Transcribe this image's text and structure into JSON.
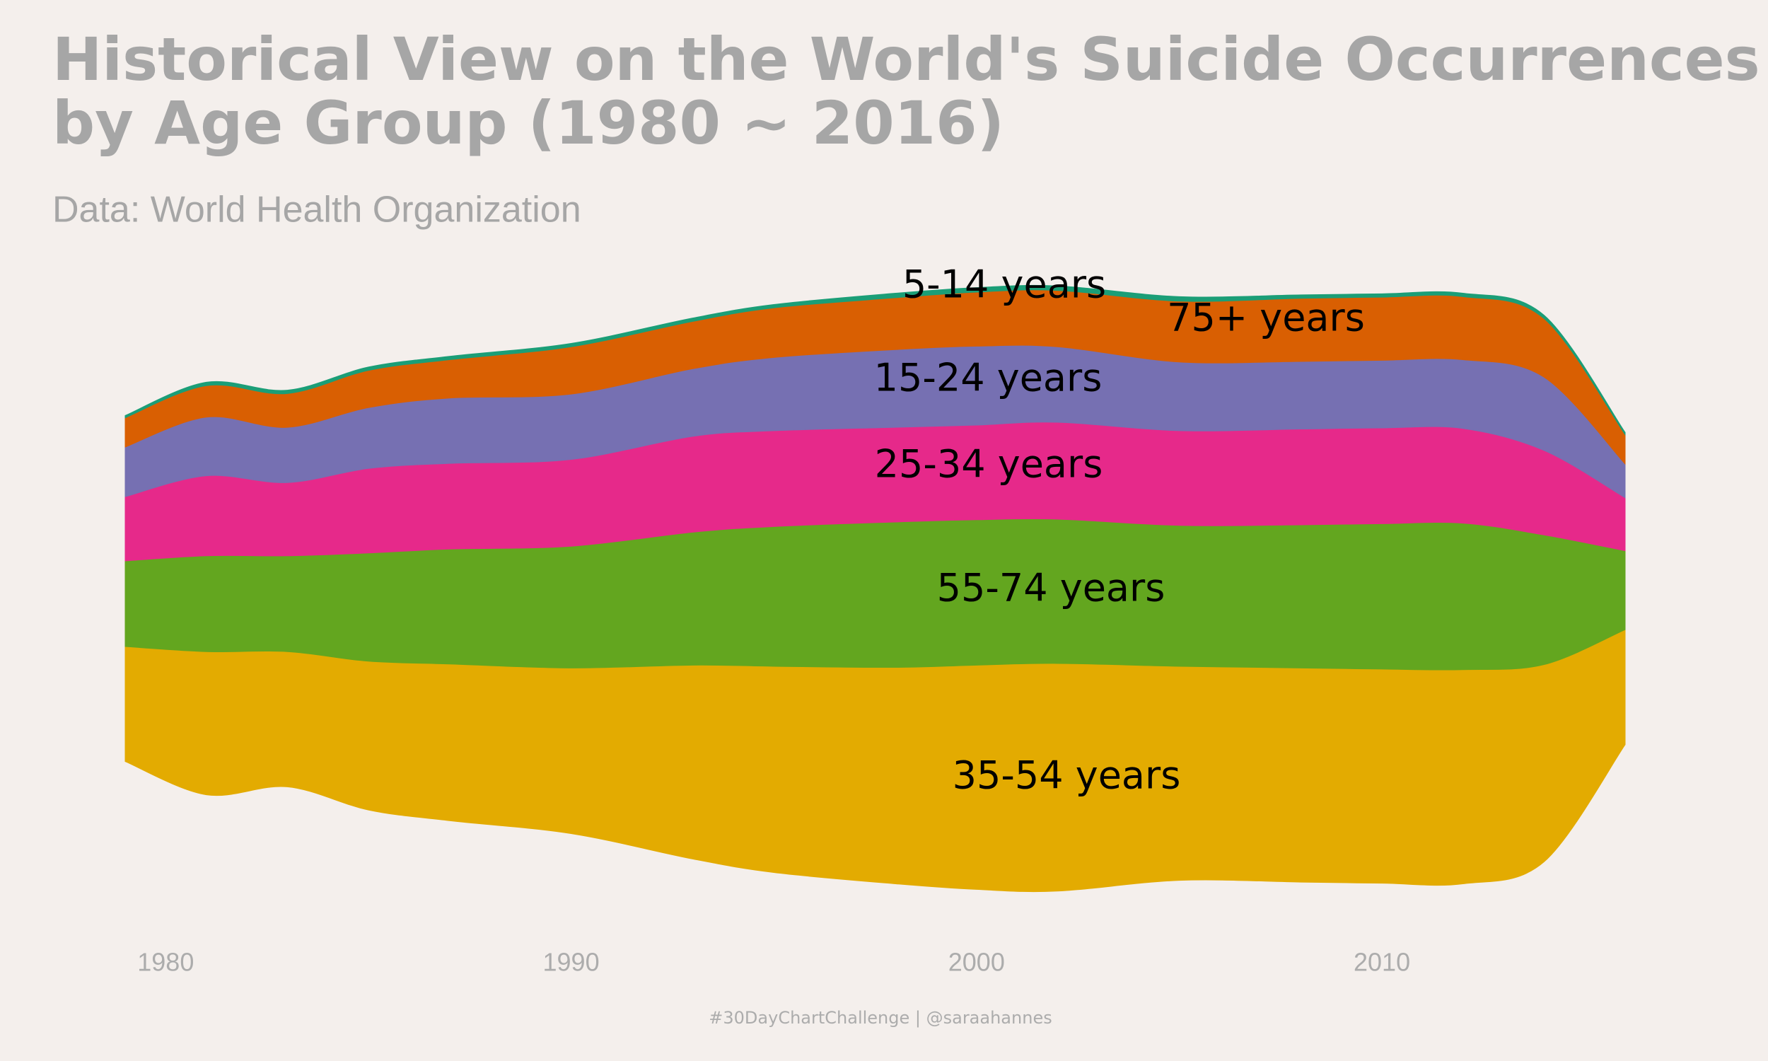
{
  "chart_data": {
    "type": "stream",
    "title": [
      "Historical View on the World's Suicide Occurrences",
      "by Age Group (1980 ~ 2016)"
    ],
    "subtitle": "Data: World Health Organization",
    "caption": "#30DayChartChallenge | @saraahannes",
    "x": [
      1979,
      1981,
      1983,
      1985,
      1987,
      1990,
      1993,
      1995,
      1998,
      2000,
      2002,
      2005,
      2008,
      2010,
      2012,
      2014,
      2016
    ],
    "xlim": [
      1979,
      2016
    ],
    "xticks": [
      1980,
      1990,
      2000,
      2010
    ],
    "ylim": [
      -150,
      150
    ],
    "series": [
      {
        "name": "35-54 years",
        "color": "#e3ab01",
        "values": [
          51,
          63.5,
          60,
          66,
          69.5,
          73.5,
          86,
          91.5,
          96,
          99.5,
          101,
          95,
          95,
          95,
          95,
          87.5,
          51
        ]
      },
      {
        "name": "55-74 years",
        "color": "#63a61f",
        "values": [
          38,
          42.5,
          42.5,
          48,
          51,
          54,
          59,
          62,
          64.5,
          64.5,
          64,
          62.5,
          63.5,
          64.5,
          65,
          57.5,
          35
        ]
      },
      {
        "name": "25-34 years",
        "color": "#e6298a",
        "values": [
          28.5,
          35.5,
          32.5,
          37.5,
          38,
          38.5,
          42.5,
          42.5,
          42,
          42,
          43,
          42,
          42.5,
          42.5,
          42,
          37.5,
          23.5
        ]
      },
      {
        "name": "15-24 years",
        "color": "#7670b2",
        "values": [
          22,
          26,
          24.5,
          27,
          29,
          29,
          30,
          32.5,
          34.5,
          35,
          33.5,
          30.5,
          30,
          30,
          30.5,
          32.5,
          15
        ]
      },
      {
        "name": "75+ years",
        "color": "#d95f02",
        "values": [
          13,
          14,
          15,
          16.5,
          17,
          21,
          21,
          22,
          23,
          24,
          25,
          27,
          28,
          28,
          28,
          26,
          13
        ]
      },
      {
        "name": "5-14 years",
        "color": "#1b9e77",
        "values": [
          1,
          1.5,
          1.5,
          1.5,
          1.5,
          1.5,
          1.5,
          1.5,
          2,
          2,
          2,
          2,
          1.5,
          1.5,
          1.5,
          1.5,
          1
        ]
      }
    ]
  }
}
